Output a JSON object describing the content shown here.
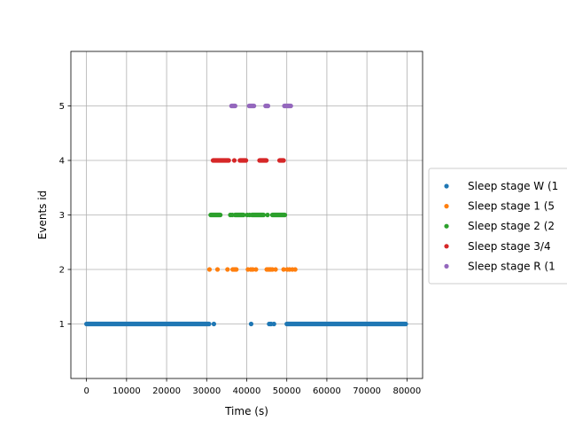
{
  "chart_data": {
    "type": "scatter",
    "title": "",
    "xlabel": "Time (s)",
    "ylabel": "Events id",
    "xlim": [
      -3900,
      83900
    ],
    "ylim": [
      0,
      6
    ],
    "x_ticks": [
      0,
      10000,
      20000,
      30000,
      40000,
      50000,
      60000,
      70000,
      80000
    ],
    "x_tick_labels": [
      "0",
      "10000",
      "20000",
      "30000",
      "40000",
      "50000",
      "60000",
      "70000",
      "80000"
    ],
    "y_ticks": [
      1,
      2,
      3,
      4,
      5
    ],
    "y_tick_labels": [
      "1",
      "2",
      "3",
      "4",
      "5"
    ],
    "grid": true,
    "legend_position": "right-outside",
    "series": [
      {
        "name": "Sleep stage W (1",
        "color": "#1f77b4",
        "y": 1,
        "runs": [
          [
            0,
            30600
          ]
        ],
        "points": [
          31800,
          41100,
          45600,
          45900,
          46100,
          46800
        ],
        "runs2": [
          [
            50000,
            79700
          ]
        ]
      },
      {
        "name": "Sleep stage 1 (5",
        "color": "#ff7f0e",
        "y": 2,
        "runs": [],
        "points": [
          30700,
          32700,
          35200,
          36500,
          36800,
          37100,
          37400,
          40300,
          41000,
          41500,
          42300,
          45000,
          45400,
          45700,
          46000,
          46400,
          47200,
          49200,
          50100,
          50700,
          51400,
          52100
        ]
      },
      {
        "name": "Sleep stage 2 (2",
        "color": "#2ca02c",
        "y": 3,
        "runs": [
          [
            31000,
            33400
          ],
          [
            37100,
            39200
          ],
          [
            41300,
            44200
          ],
          [
            46400,
            49500
          ]
        ],
        "points": [
          35900,
          36400,
          40100,
          40700,
          45200
        ]
      },
      {
        "name": "Sleep stage 3/4",
        "color": "#d62728",
        "y": 4,
        "runs": [
          [
            31600,
            35500
          ],
          [
            38300,
            39800
          ],
          [
            43200,
            44900
          ],
          [
            48200,
            49200
          ]
        ],
        "points": [
          36900
        ]
      },
      {
        "name": "Sleep stage R (1",
        "color": "#9467bd",
        "y": 5,
        "runs": [
          [
            36200,
            37100
          ],
          [
            40600,
            41800
          ],
          [
            44700,
            45300
          ],
          [
            49400,
            51000
          ]
        ],
        "points": []
      }
    ]
  }
}
